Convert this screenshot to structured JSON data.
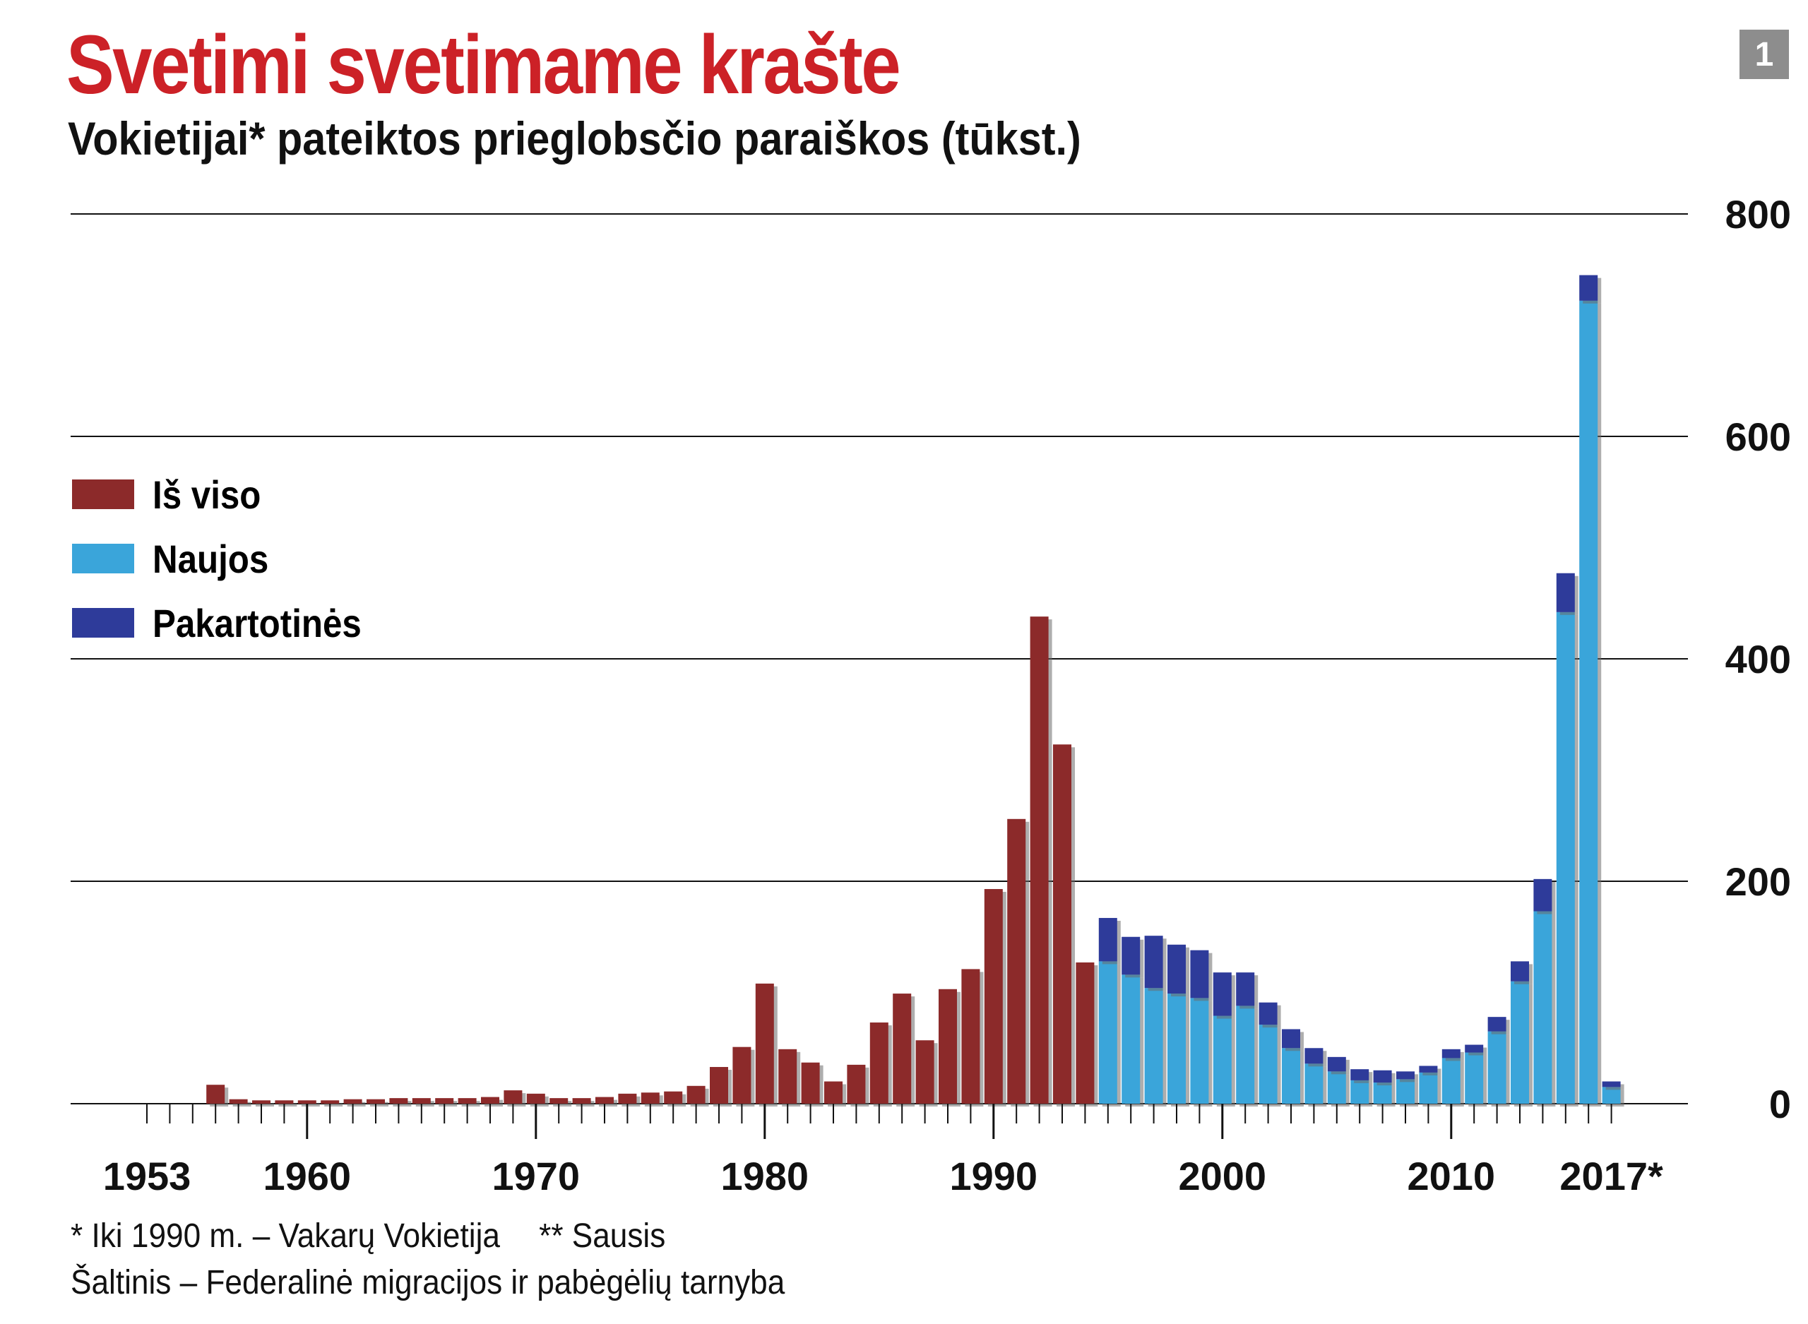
{
  "title": "Svetimi svetimame krašte",
  "subtitle": "Vokietijai* pateiktos prieglobsčio paraiškos (tūkst.)",
  "badge": "1",
  "colors": {
    "title": "#cc2127",
    "total": "#8c2a2a",
    "new": "#3aa5da",
    "repeat": "#2e3b9a",
    "grid": "#111111"
  },
  "legend": [
    {
      "label": "Iš viso",
      "color_key": "total"
    },
    {
      "label": "Naujos",
      "color_key": "new"
    },
    {
      "label": "Pakartotinės",
      "color_key": "repeat"
    }
  ],
  "footnotes": {
    "note1": "* Iki 1990 m. – Vakarų Vokietija",
    "note2": "** Sausis",
    "source": "Šaltinis – Federalinė migracijos ir pabėgėlių tarnyba"
  },
  "chart_data": {
    "type": "bar",
    "stacked": true,
    "ylim": [
      0,
      800
    ],
    "yticks": [
      0,
      200,
      400,
      600,
      800
    ],
    "xtick_labels": [
      {
        "year": 1953,
        "label": "1953"
      },
      {
        "year": 1960,
        "label": "1960"
      },
      {
        "year": 1970,
        "label": "1970"
      },
      {
        "year": 1980,
        "label": "1980"
      },
      {
        "year": 1990,
        "label": "1990"
      },
      {
        "year": 2000,
        "label": "2000"
      },
      {
        "year": 2010,
        "label": "2010"
      },
      {
        "year": 2017,
        "label": "2017*"
      }
    ],
    "year_range": [
      1953,
      2017
    ],
    "grid": true,
    "legend_position": "left",
    "series": [
      {
        "name": "Iš viso",
        "color_key": "total",
        "x": [
          1956,
          1957,
          1958,
          1959,
          1960,
          1961,
          1962,
          1963,
          1964,
          1965,
          1966,
          1967,
          1968,
          1969,
          1970,
          1971,
          1972,
          1973,
          1974,
          1975,
          1976,
          1977,
          1978,
          1979,
          1980,
          1981,
          1982,
          1983,
          1984,
          1985,
          1986,
          1987,
          1988,
          1989,
          1990,
          1991,
          1992,
          1993,
          1994
        ],
        "values": [
          17,
          4,
          3,
          3,
          3,
          3,
          4,
          4,
          5,
          5,
          5,
          5,
          6,
          12,
          9,
          5,
          5,
          6,
          9,
          10,
          11,
          16,
          33,
          51,
          108,
          49,
          37,
          20,
          35,
          73,
          99,
          57,
          103,
          121,
          193,
          256,
          438,
          323,
          127
        ]
      },
      {
        "name": "Naujos",
        "color_key": "new",
        "x": [
          1995,
          1996,
          1997,
          1998,
          1999,
          2000,
          2001,
          2002,
          2003,
          2004,
          2005,
          2006,
          2007,
          2008,
          2009,
          2010,
          2011,
          2012,
          2013,
          2014,
          2015,
          2016,
          2017
        ],
        "values": [
          128,
          116,
          104,
          99,
          95,
          79,
          88,
          71,
          50,
          36,
          29,
          21,
          19,
          22,
          28,
          41,
          46,
          65,
          110,
          173,
          442,
          722,
          15
        ]
      },
      {
        "name": "Pakartotinės",
        "color_key": "repeat",
        "x": [
          1995,
          1996,
          1997,
          1998,
          1999,
          2000,
          2001,
          2002,
          2003,
          2004,
          2005,
          2006,
          2007,
          2008,
          2009,
          2010,
          2011,
          2012,
          2013,
          2014,
          2015,
          2016,
          2017
        ],
        "values": [
          39,
          34,
          47,
          44,
          43,
          39,
          30,
          20,
          17,
          14,
          13,
          10,
          11,
          7,
          6,
          8,
          7,
          13,
          18,
          29,
          35,
          23,
          5
        ]
      }
    ]
  }
}
